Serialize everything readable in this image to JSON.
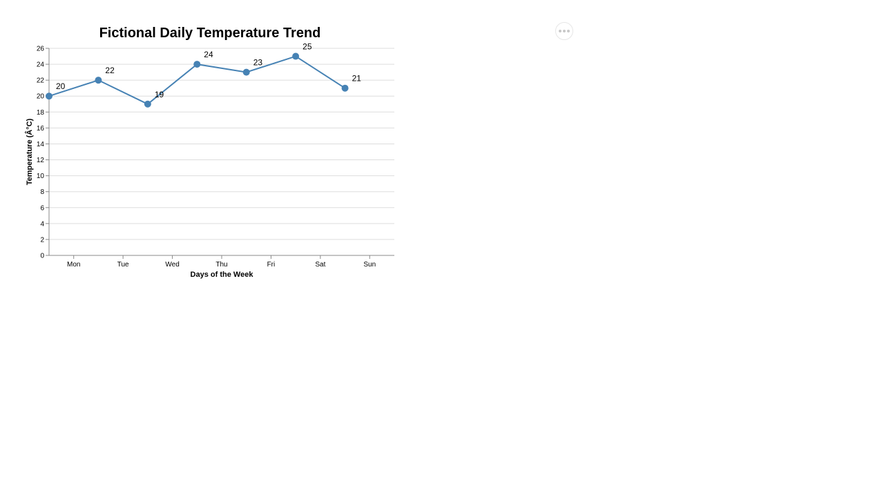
{
  "chart_data": {
    "type": "line",
    "title": "Fictional Daily Temperature Trend",
    "xlabel": "Days of the Week",
    "ylabel": "Temperature (Â°C)",
    "categories": [
      "Mon",
      "Tue",
      "Wed",
      "Thu",
      "Fri",
      "Sat",
      "Sun"
    ],
    "values": [
      20,
      22,
      19,
      24,
      23,
      25,
      21
    ],
    "ylim": [
      0,
      26
    ],
    "yticks": [
      0,
      2,
      4,
      6,
      8,
      10,
      12,
      14,
      16,
      18,
      20,
      22,
      24,
      26
    ],
    "grid": true,
    "legend": "none",
    "colors": {
      "line": "#4682b4",
      "point": "#4682b4"
    }
  },
  "actions_menu": {
    "icon": "ellipsis-icon"
  }
}
